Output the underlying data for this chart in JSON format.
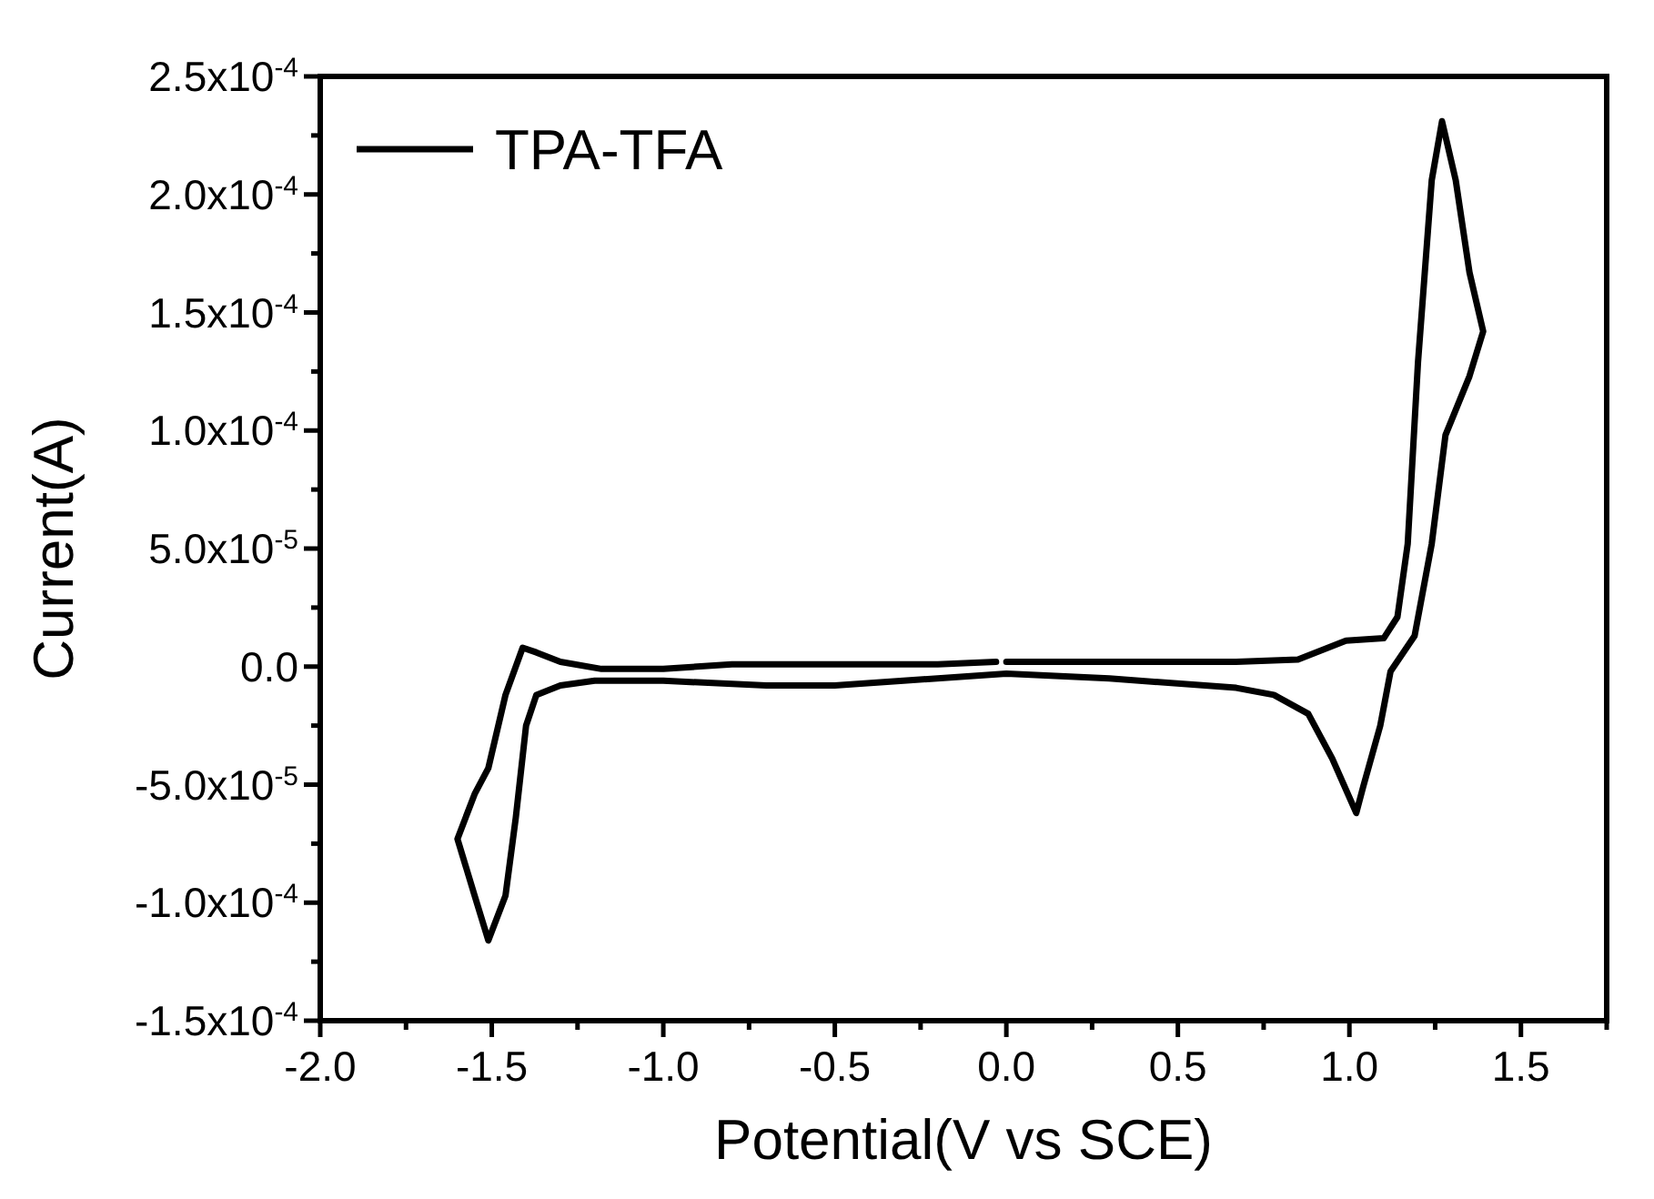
{
  "chart_data": {
    "type": "line",
    "xlabel": "Potential(V vs SCE)",
    "ylabel": "Current(A)",
    "xlim": [
      -2.0,
      1.75
    ],
    "ylim": [
      -0.00015,
      0.00025
    ],
    "xticks": [
      {
        "value": -2.0,
        "label": "-2.0"
      },
      {
        "value": -1.75,
        "label": null
      },
      {
        "value": -1.5,
        "label": "-1.5"
      },
      {
        "value": -1.25,
        "label": null
      },
      {
        "value": -1.0,
        "label": "-1.0"
      },
      {
        "value": -0.75,
        "label": null
      },
      {
        "value": -0.5,
        "label": "-0.5"
      },
      {
        "value": -0.25,
        "label": null
      },
      {
        "value": 0,
        "label": "0.0"
      },
      {
        "value": 0.25,
        "label": null
      },
      {
        "value": 0.5,
        "label": "0.5"
      },
      {
        "value": 0.75,
        "label": null
      },
      {
        "value": 1.0,
        "label": "1.0"
      },
      {
        "value": 1.25,
        "label": null
      },
      {
        "value": 1.5,
        "label": "1.5"
      },
      {
        "value": 1.75,
        "label": null
      }
    ],
    "yticks": [
      {
        "value": -0.00015,
        "label": "-1.5x10$^{-4}$"
      },
      {
        "value": -0.000125,
        "label": null
      },
      {
        "value": -0.0001,
        "label": "-1.0x10$^{-4}$"
      },
      {
        "value": -7.5e-05,
        "label": null
      },
      {
        "value": -5e-05,
        "label": "-5.0x10$^{-5}$"
      },
      {
        "value": -2.5e-05,
        "label": null
      },
      {
        "value": 0,
        "label": "0.0"
      },
      {
        "value": 2.5e-05,
        "label": null
      },
      {
        "value": 5e-05,
        "label": "5.0x10$^{-5}$"
      },
      {
        "value": 7.5e-05,
        "label": null
      },
      {
        "value": 0.0001,
        "label": "1.0x10$^{-4}$"
      },
      {
        "value": 0.000125,
        "label": null
      },
      {
        "value": 0.00015,
        "label": "1.5x10$^{-4}$"
      },
      {
        "value": 0.000175,
        "label": null
      },
      {
        "value": 0.0002,
        "label": "2.0x10$^{-4}$"
      },
      {
        "value": 0.000225,
        "label": null
      },
      {
        "value": 0.00025,
        "label": "2.5x10$^{-4}$"
      }
    ],
    "legend": "top left",
    "grid": false,
    "marker": "none",
    "line_style": "solid",
    "series": [
      {
        "name": "TPA-TFA",
        "color": "#000000",
        "x": [
          0.0,
          0.3,
          0.67,
          0.85,
          0.99,
          1.1,
          1.14,
          1.17,
          1.2,
          1.24,
          1.27,
          1.31,
          1.35,
          1.39,
          1.35,
          1.28,
          1.24,
          1.19,
          1.12,
          1.09,
          1.04,
          1.02,
          0.95,
          0.88,
          0.78,
          0.67,
          0.3,
          0.0,
          -0.3,
          -0.5,
          -0.7,
          -1.0,
          -1.2,
          -1.3,
          -1.37,
          -1.4,
          -1.43,
          -1.46,
          -1.51,
          -1.55,
          -1.6,
          -1.55,
          -1.51,
          -1.46,
          -1.41,
          -1.37,
          -1.3,
          -1.18,
          -1.0,
          -0.8,
          -0.5,
          -0.2,
          -0.03
        ],
        "values": [
          2e-06,
          2e-06,
          2e-06,
          3e-06,
          1.1e-05,
          1.2e-05,
          2.1e-05,
          5.2e-05,
          0.000129,
          0.000206,
          0.000231,
          0.000206,
          0.000167,
          0.000142,
          0.000123,
          9.8e-05,
          5.2e-05,
          1.3e-05,
          -2e-06,
          -2.5e-05,
          -5.1e-05,
          -6.2e-05,
          -3.9e-05,
          -2e-05,
          -1.2e-05,
          -9e-06,
          -5e-06,
          -3e-06,
          -6e-06,
          -8e-06,
          -8e-06,
          -6e-06,
          -6e-06,
          -8e-06,
          -1.2e-05,
          -2.5e-05,
          -6.4e-05,
          -9.7e-05,
          -0.000116,
          -9.7e-05,
          -7.3e-05,
          -5.4e-05,
          -4.3e-05,
          -1.2e-05,
          8e-06,
          6e-06,
          2e-06,
          -1e-06,
          -1e-06,
          1e-06,
          1e-06,
          1e-06,
          2e-06
        ]
      }
    ]
  }
}
